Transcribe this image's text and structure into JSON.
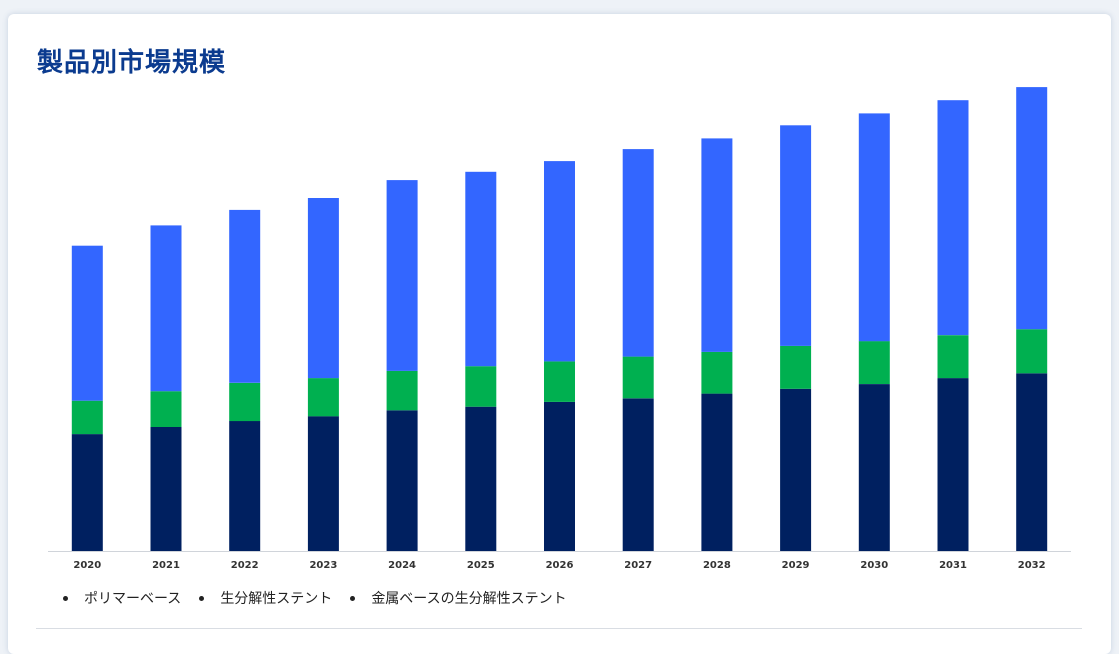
{
  "header": {
    "title": "製品別市場規模"
  },
  "colors": {
    "polymer": "#3366ff",
    "biodegradable": "#00b050",
    "metal": "#002060"
  },
  "chart_data": {
    "type": "bar",
    "stacked": true,
    "title": "製品別市場規模",
    "xlabel": "",
    "ylabel": "",
    "categories": [
      "2020",
      "2021",
      "2022",
      "2023",
      "2024",
      "2025",
      "2026",
      "2027",
      "2028",
      "2029",
      "2030",
      "2031",
      "2032"
    ],
    "series": [
      {
        "name": "金属ベースの生分解性ステント",
        "color": "#002060",
        "values": [
          98,
          104,
          109,
          113,
          118,
          121,
          125,
          128,
          132,
          136,
          140,
          145,
          149
        ]
      },
      {
        "name": "生分解性ステント",
        "color": "#00b050",
        "values": [
          28,
          30,
          32,
          32,
          33,
          34,
          34,
          35,
          35,
          36,
          36,
          36,
          37
        ]
      },
      {
        "name": "ポリマーベース",
        "color": "#3366ff",
        "values": [
          130,
          139,
          145,
          151,
          160,
          163,
          168,
          174,
          179,
          185,
          191,
          197,
          203
        ]
      }
    ],
    "ylim": [
      0,
      400
    ],
    "grid": false,
    "legend_position": "bottom-left"
  },
  "legend": {
    "items": [
      "ポリマーベース",
      "生分解性ステント",
      "金属ベースの生分解性ステント"
    ]
  }
}
